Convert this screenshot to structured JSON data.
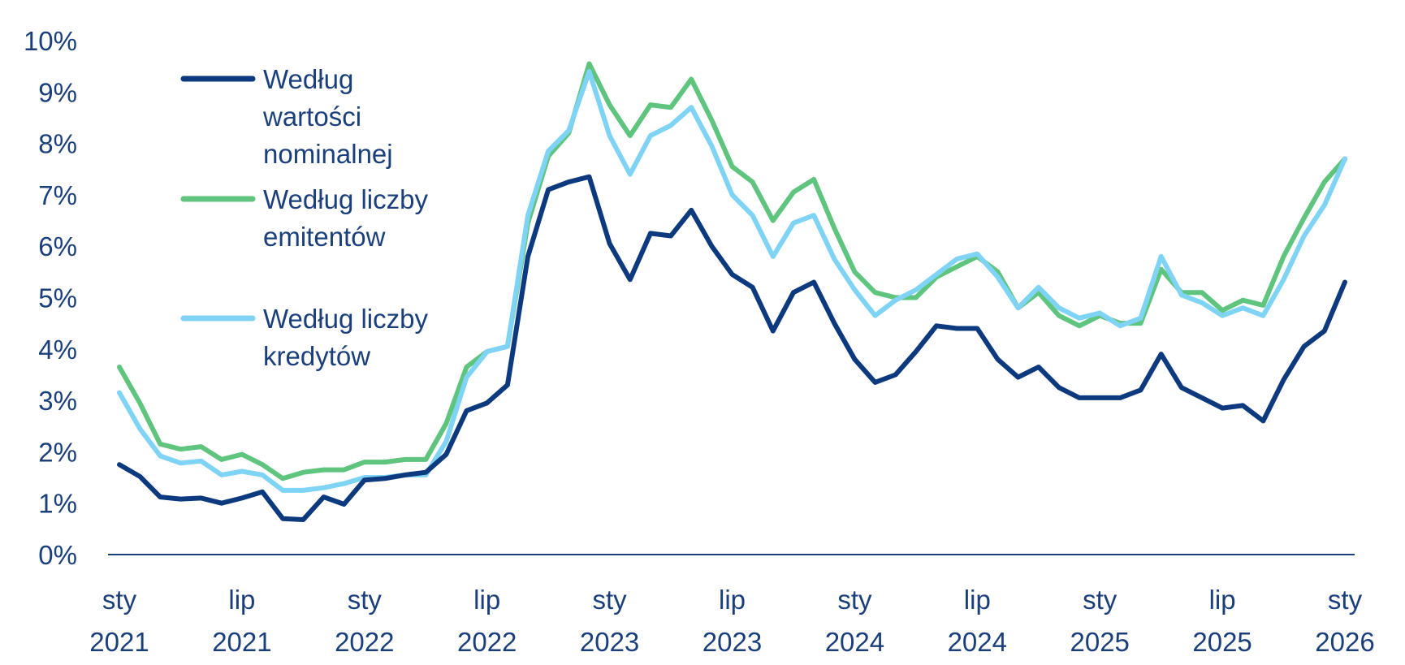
{
  "colors": {
    "text": "#1a3f7a",
    "axis": "#1a3f7a",
    "background": "#ffffff"
  },
  "chart_data": {
    "type": "line",
    "title": "",
    "xlabel": "",
    "ylabel": "",
    "ylim": [
      0,
      10
    ],
    "grid": false,
    "legend_position": "top-left",
    "y_ticks": [
      "0%",
      "1%",
      "2%",
      "3%",
      "4%",
      "5%",
      "6%",
      "7%",
      "8%",
      "9%",
      "10%"
    ],
    "x_ticks": [
      {
        "month": "sty",
        "year": "2021"
      },
      {
        "month": "lip",
        "year": "2021"
      },
      {
        "month": "sty",
        "year": "2022"
      },
      {
        "month": "lip",
        "year": "2022"
      },
      {
        "month": "sty",
        "year": "2023"
      },
      {
        "month": "lip",
        "year": "2023"
      },
      {
        "month": "sty",
        "year": "2024"
      },
      {
        "month": "lip",
        "year": "2024"
      },
      {
        "month": "sty",
        "year": "2025"
      },
      {
        "month": "lip",
        "year": "2025"
      },
      {
        "month": "sty",
        "year": "2026"
      }
    ],
    "x": [
      "2021-01",
      "2021-02",
      "2021-03",
      "2021-04",
      "2021-05",
      "2021-06",
      "2021-07",
      "2021-08",
      "2021-09",
      "2021-10",
      "2021-11",
      "2021-12",
      "2022-01",
      "2022-02",
      "2022-03",
      "2022-04",
      "2022-05",
      "2022-06",
      "2022-07",
      "2022-08",
      "2022-09",
      "2022-10",
      "2022-11",
      "2022-12",
      "2023-01",
      "2023-02",
      "2023-03",
      "2023-04",
      "2023-05",
      "2023-06",
      "2023-07",
      "2023-08",
      "2023-09",
      "2023-10",
      "2023-11",
      "2023-12",
      "2024-01",
      "2024-02",
      "2024-03",
      "2024-04",
      "2024-05",
      "2024-06",
      "2024-07",
      "2024-08",
      "2024-09",
      "2024-10",
      "2024-11",
      "2024-12",
      "2025-01",
      "2025-02",
      "2025-03",
      "2025-04",
      "2025-05",
      "2025-06",
      "2025-07",
      "2025-08",
      "2025-09",
      "2025-10",
      "2025-11",
      "2025-12",
      "2026-01"
    ],
    "series": [
      {
        "name": "Według wartości nominalnej",
        "color": "#0d3a7e",
        "legend_lines": [
          "Według",
          "wartości",
          "nominalnej"
        ],
        "values": [
          1.75,
          1.52,
          1.12,
          1.08,
          1.1,
          1.0,
          1.1,
          1.22,
          0.7,
          0.68,
          1.12,
          0.98,
          1.45,
          1.48,
          1.55,
          1.6,
          1.95,
          2.8,
          2.95,
          3.3,
          5.8,
          7.1,
          7.25,
          7.35,
          6.05,
          5.35,
          6.25,
          6.2,
          6.7,
          6.0,
          5.45,
          5.2,
          4.35,
          5.1,
          5.3,
          4.5,
          3.8,
          3.35,
          3.5,
          3.95,
          4.45,
          4.4,
          4.4,
          3.8,
          3.45,
          3.65,
          3.25,
          3.05,
          3.05,
          3.05,
          3.2,
          3.9,
          3.25,
          3.05,
          2.85,
          2.9,
          2.6,
          3.4,
          4.05,
          4.35,
          5.3
        ]
      },
      {
        "name": "Według liczby emitentów",
        "color": "#5ec47e",
        "legend_lines": [
          "Według liczby",
          "emitentów"
        ],
        "values": [
          3.65,
          2.95,
          2.15,
          2.05,
          2.1,
          1.85,
          1.95,
          1.75,
          1.48,
          1.6,
          1.65,
          1.65,
          1.8,
          1.8,
          1.85,
          1.85,
          2.55,
          3.65,
          3.95,
          4.05,
          6.45,
          7.75,
          8.2,
          9.55,
          8.75,
          8.15,
          8.75,
          8.7,
          9.25,
          8.45,
          7.55,
          7.25,
          6.5,
          7.05,
          7.3,
          6.35,
          5.5,
          5.1,
          5.0,
          5.0,
          5.4,
          5.6,
          5.8,
          5.5,
          4.8,
          5.1,
          4.65,
          4.45,
          4.65,
          4.5,
          4.5,
          5.55,
          5.1,
          5.1,
          4.75,
          4.95,
          4.85,
          5.8,
          6.55,
          7.25,
          7.7
        ]
      },
      {
        "name": "Według liczby kredytów",
        "color": "#7fd3f4",
        "legend_lines": [
          "Według liczby",
          "kredytów"
        ],
        "values": [
          3.15,
          2.45,
          1.92,
          1.78,
          1.82,
          1.55,
          1.62,
          1.55,
          1.25,
          1.25,
          1.3,
          1.38,
          1.5,
          1.5,
          1.55,
          1.55,
          2.2,
          3.45,
          3.95,
          4.05,
          6.6,
          7.85,
          8.25,
          9.4,
          8.15,
          7.4,
          8.15,
          8.35,
          8.7,
          7.95,
          7.0,
          6.6,
          5.8,
          6.45,
          6.6,
          5.75,
          5.15,
          4.65,
          4.95,
          5.15,
          5.45,
          5.75,
          5.85,
          5.4,
          4.8,
          5.2,
          4.8,
          4.6,
          4.7,
          4.45,
          4.6,
          5.8,
          5.05,
          4.9,
          4.65,
          4.8,
          4.65,
          5.35,
          6.2,
          6.8,
          7.7
        ]
      }
    ]
  }
}
